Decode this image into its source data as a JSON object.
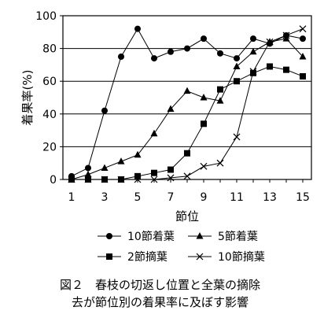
{
  "chart_data": {
    "type": "line",
    "xlabel": "節位",
    "ylabel": "着果率(%)",
    "x": [
      1,
      2,
      3,
      4,
      5,
      6,
      7,
      8,
      9,
      10,
      11,
      12,
      13,
      14,
      15
    ],
    "xticks": [
      1,
      3,
      5,
      7,
      9,
      11,
      13,
      15
    ],
    "ylim": [
      0,
      100
    ],
    "yticks": [
      0,
      20,
      40,
      60,
      80,
      100
    ],
    "grid": "horizontal",
    "legend_position": "bottom",
    "series": [
      {
        "name": "10節着葉",
        "marker": "circle",
        "values": [
          2,
          7,
          42,
          75,
          92,
          74,
          78,
          80,
          86,
          77,
          74,
          86,
          83,
          88,
          86
        ]
      },
      {
        "name": "5節着葉",
        "marker": "triangle",
        "values": [
          0,
          3,
          7,
          11,
          15,
          28,
          43,
          54,
          50,
          48,
          69,
          78,
          84,
          86,
          75
        ]
      },
      {
        "name": "2節摘葉",
        "marker": "square",
        "values": [
          0,
          0,
          0,
          0,
          2,
          4,
          6,
          16,
          34,
          55,
          60,
          65,
          69,
          67,
          63
        ]
      },
      {
        "name": "10節摘葉",
        "marker": "x",
        "values": [
          0,
          0,
          0,
          0,
          0,
          0,
          1,
          2,
          8,
          10,
          26,
          66,
          84,
          88,
          92
        ]
      }
    ]
  },
  "caption": {
    "line1": "図２　春枝の切返し位置と全葉の摘除",
    "line2": "去が節位別の着果率に及ぼす影響"
  }
}
